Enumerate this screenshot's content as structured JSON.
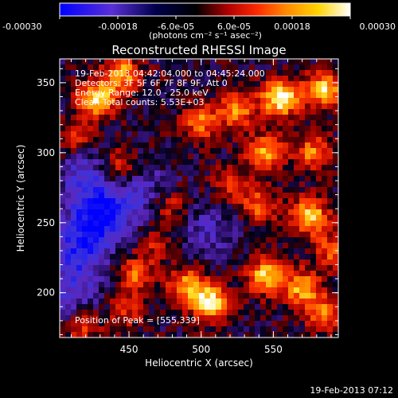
{
  "chart_data": {
    "type": "heatmap",
    "title": "Reconstructed RHESSI Image",
    "xlabel": "Heliocentric X (arcsec)",
    "ylabel": "Heliocentric Y (arcsec)",
    "xlim": [
      402,
      595
    ],
    "ylim": [
      168,
      367
    ],
    "x_ticks": [
      "450",
      "500",
      "550"
    ],
    "x_tick_values": [
      450,
      500,
      550
    ],
    "y_ticks": [
      "200",
      "250",
      "300",
      "350"
    ],
    "y_tick_values": [
      200,
      250,
      300,
      350
    ],
    "colorbar": {
      "range": [
        -0.0003,
        0.0003
      ],
      "ticks": [
        "-0.00030",
        "-0.00018",
        "-6.0e-05",
        "6.0e-05",
        "0.00018",
        "0.00030"
      ],
      "unit": "(photons cm⁻² s⁻¹ asec⁻²)",
      "colors": [
        "#0000ff",
        "#5a2fd6",
        "#00004a",
        "#000000",
        "#b00000",
        "#ff2a00",
        "#ff8a00",
        "#ffd400",
        "#ffffff"
      ]
    },
    "info_lines": [
      "19-Feb-2013 04:42:04.000 to 04:45:24.000",
      "Detectors: 3F 5F 6F 7F 8F 9F, Att 0",
      "Energy Range: 12.0 - 25.0 keV",
      "Clean     Total counts: 5.53E+03"
    ],
    "peak_label": "Position of Peak = [555,339]",
    "peak_position": [
      555,
      339
    ],
    "bright_sources": [
      {
        "x": 428,
        "y": 338,
        "amp": 1.5
      },
      {
        "x": 445,
        "y": 356,
        "amp": 1.2
      },
      {
        "x": 412,
        "y": 310,
        "amp": 0.7
      },
      {
        "x": 555,
        "y": 339,
        "amp": 1.7
      },
      {
        "x": 585,
        "y": 345,
        "amp": 1.4
      },
      {
        "x": 525,
        "y": 330,
        "amp": 1.1
      },
      {
        "x": 500,
        "y": 322,
        "amp": 1.0
      },
      {
        "x": 545,
        "y": 300,
        "amp": 1.2
      },
      {
        "x": 578,
        "y": 300,
        "amp": 1.0
      },
      {
        "x": 575,
        "y": 255,
        "amp": 1.4
      },
      {
        "x": 590,
        "y": 230,
        "amp": 0.8
      },
      {
        "x": 540,
        "y": 262,
        "amp": 0.9
      },
      {
        "x": 478,
        "y": 262,
        "amp": 0.7
      },
      {
        "x": 468,
        "y": 235,
        "amp": 0.5
      },
      {
        "x": 545,
        "y": 212,
        "amp": 1.4
      },
      {
        "x": 570,
        "y": 203,
        "amp": 1.2
      },
      {
        "x": 585,
        "y": 185,
        "amp": 1.0
      },
      {
        "x": 507,
        "y": 193,
        "amp": 1.5
      },
      {
        "x": 490,
        "y": 205,
        "amp": 1.1
      },
      {
        "x": 455,
        "y": 213,
        "amp": 0.9
      },
      {
        "x": 448,
        "y": 187,
        "amp": 0.6
      },
      {
        "x": 418,
        "y": 176,
        "amp": 0.7
      },
      {
        "x": 442,
        "y": 290,
        "amp": 0.8
      },
      {
        "x": 520,
        "y": 278,
        "amp": 0.7
      }
    ],
    "dim_regions": [
      {
        "x": 430,
        "y": 255,
        "amp": 1.3
      },
      {
        "x": 415,
        "y": 230,
        "amp": 0.9
      },
      {
        "x": 420,
        "y": 285,
        "amp": 0.7
      },
      {
        "x": 460,
        "y": 270,
        "amp": 0.6
      },
      {
        "x": 505,
        "y": 245,
        "amp": 0.5
      },
      {
        "x": 410,
        "y": 200,
        "amp": 0.6
      }
    ]
  },
  "footer": {
    "timestamp": "19-Feb-2013 07:12"
  }
}
